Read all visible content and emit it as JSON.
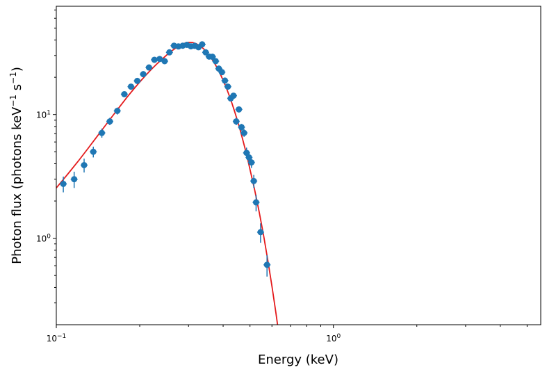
{
  "chart_data": {
    "type": "scatter",
    "xlabel": "Energy (keV)",
    "ylabel_main": "Photon flux (photons keV",
    "ylabel_sup1": "−1",
    "ylabel_mid": " s",
    "ylabel_sup2": "−1",
    "ylabel_end": ")",
    "xscale": "log",
    "yscale": "log",
    "xlim": [
      0.1,
      5.6
    ],
    "ylim": [
      0.2,
      75
    ],
    "grid": false,
    "x_ticks": [
      {
        "value": 0.1,
        "base": "10",
        "exp": "−1"
      },
      {
        "value": 1.0,
        "base": "10",
        "exp": "0"
      }
    ],
    "y_ticks": [
      {
        "value": 1.0,
        "base": "10",
        "exp": "0"
      },
      {
        "value": 10.0,
        "base": "10",
        "exp": "1"
      }
    ],
    "colors": {
      "points": "#1f77b4",
      "model": "#e41a1c"
    },
    "series": [
      {
        "kind": "errorbar",
        "x": [
          0.106,
          0.116,
          0.126,
          0.136,
          0.146,
          0.156,
          0.166,
          0.176,
          0.186,
          0.196,
          0.206,
          0.216,
          0.226,
          0.236,
          0.246,
          0.256,
          0.266,
          0.276,
          0.286,
          0.296,
          0.306,
          0.316,
          0.326,
          0.336,
          0.346,
          0.356,
          0.366,
          0.376,
          0.386,
          0.396,
          0.406,
          0.416,
          0.426,
          0.436,
          0.446,
          0.456,
          0.466,
          0.476,
          0.486,
          0.496,
          0.506,
          0.516,
          0.526,
          0.546,
          0.576
        ],
        "y": [
          2.75,
          3.0,
          3.9,
          5.0,
          7.1,
          8.8,
          10.7,
          14.6,
          16.8,
          18.7,
          21.2,
          24.0,
          27.7,
          28.1,
          27.0,
          31.8,
          36.0,
          35.5,
          36.0,
          36.6,
          35.6,
          35.9,
          35.0,
          36.9,
          31.8,
          29.4,
          29.3,
          27.0,
          23.5,
          22.0,
          18.8,
          16.8,
          13.5,
          14.2,
          8.8,
          11.0,
          7.9,
          7.1,
          4.9,
          4.5,
          4.1,
          2.9,
          1.95,
          1.12,
          0.61
        ],
        "yerr": [
          0.4,
          0.45,
          0.5,
          0.5,
          0.6,
          0.6,
          0.7,
          0.7,
          0.8,
          0.8,
          0.9,
          0.9,
          1.0,
          1.0,
          1.0,
          1.0,
          1.1,
          1.1,
          1.1,
          1.1,
          1.1,
          1.1,
          1.1,
          1.1,
          1.0,
          1.0,
          1.0,
          1.0,
          0.9,
          0.9,
          0.8,
          0.8,
          0.7,
          0.7,
          0.6,
          0.6,
          0.5,
          0.5,
          0.5,
          0.45,
          0.4,
          0.35,
          0.3,
          0.2,
          0.12
        ]
      },
      {
        "kind": "model_line",
        "x": [
          0.1,
          0.11,
          0.12,
          0.13,
          0.14,
          0.15,
          0.16,
          0.17,
          0.18,
          0.19,
          0.2,
          0.21,
          0.22,
          0.23,
          0.24,
          0.25,
          0.26,
          0.27,
          0.28,
          0.29,
          0.3,
          0.31,
          0.32,
          0.33,
          0.34,
          0.35,
          0.36,
          0.37,
          0.38,
          0.39,
          0.4,
          0.41,
          0.42,
          0.43,
          0.44,
          0.45,
          0.46,
          0.47,
          0.48,
          0.49,
          0.5,
          0.52,
          0.54,
          0.56,
          0.58,
          0.6,
          0.62,
          0.64
        ],
        "y": [
          2.55,
          3.3,
          4.2,
          5.3,
          6.6,
          8.1,
          9.8,
          11.7,
          13.8,
          16.0,
          18.3,
          20.7,
          23.1,
          25.5,
          27.8,
          30.2,
          32.5,
          34.5,
          36.3,
          37.6,
          38.3,
          38.2,
          37.4,
          35.9,
          34.0,
          31.7,
          29.2,
          26.6,
          24.0,
          21.4,
          18.9,
          16.6,
          14.4,
          12.4,
          10.6,
          9.0,
          7.6,
          6.35,
          5.3,
          4.4,
          3.6,
          2.45,
          1.62,
          1.05,
          0.66,
          0.41,
          0.25,
          0.15
        ]
      }
    ]
  }
}
